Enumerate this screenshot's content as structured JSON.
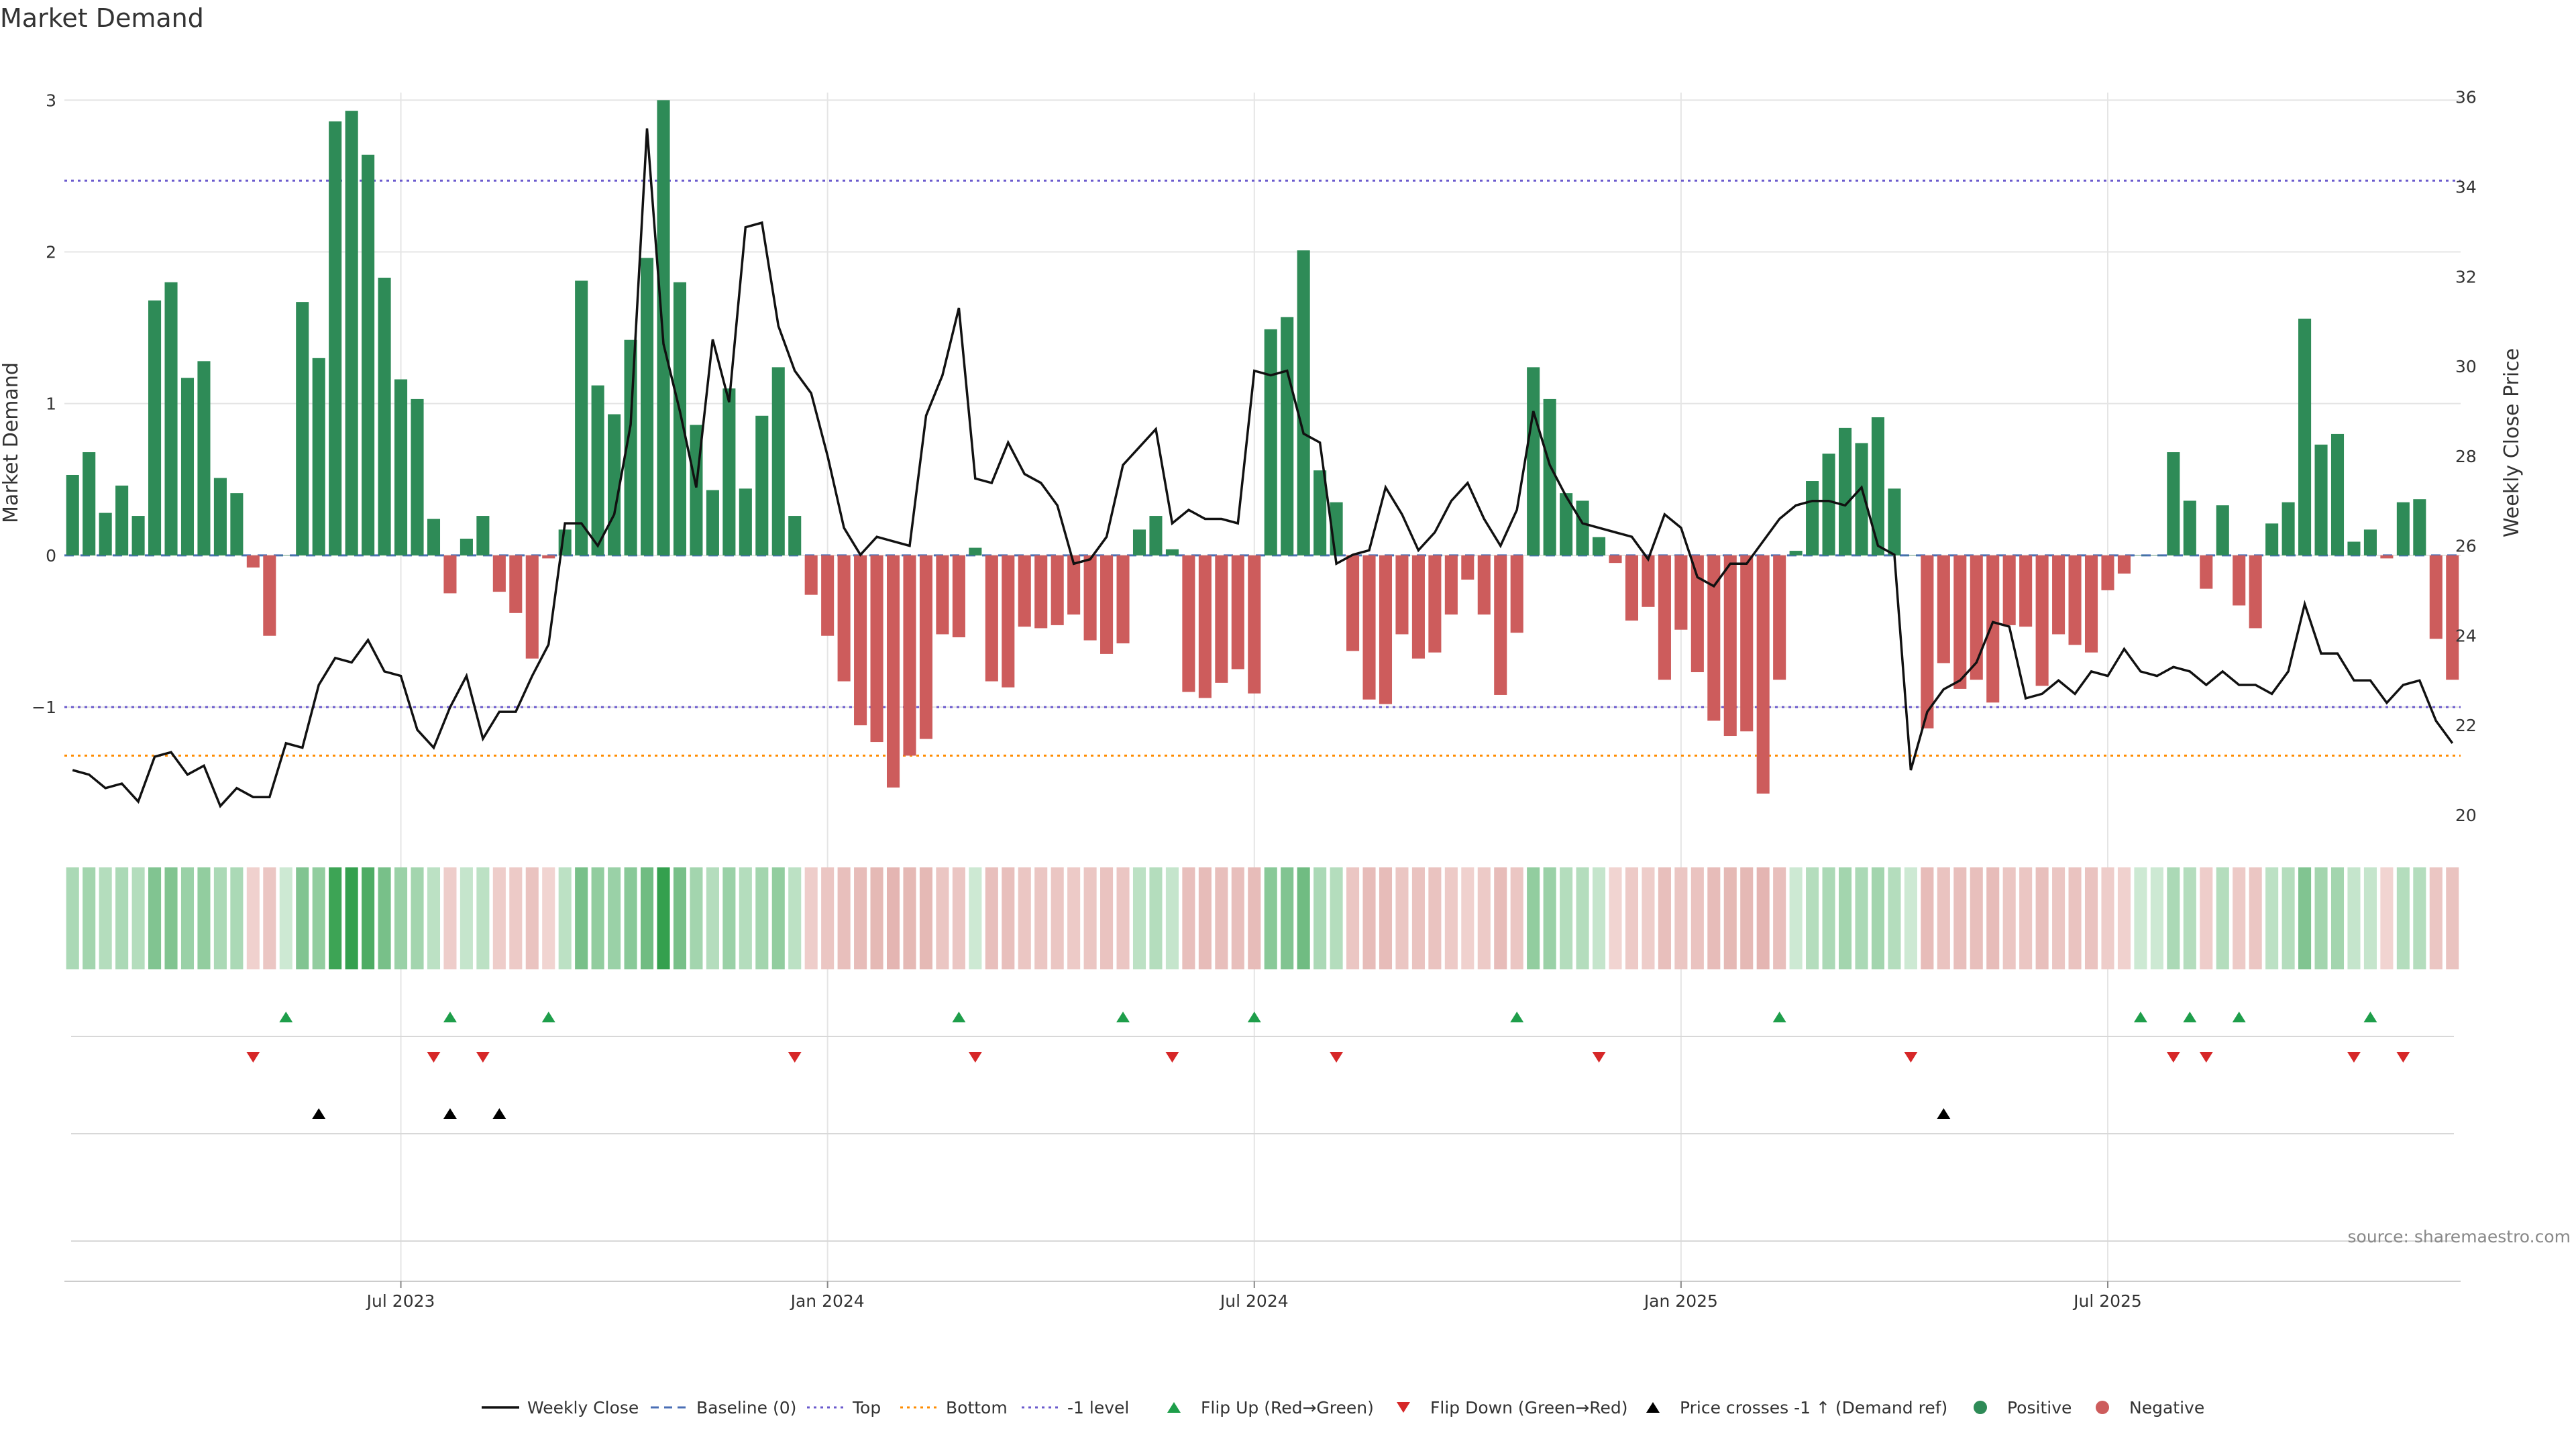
{
  "colors": {
    "positive": "#2e8b57",
    "negative": "#cd5c5c",
    "price": "#111111",
    "baseline": "#4a6fb5",
    "top": "#6a5acd",
    "bottom": "#ff8c00",
    "minus_one": "#6a5acd",
    "flip_up": "#1e9e4a",
    "flip_down": "#d62728",
    "cross": "#000000",
    "grid": "#e5e5e5"
  },
  "chart_data": {
    "type": "bar",
    "title": "Market Demand",
    "ylabel": "Market Demand",
    "y2label": "Weekly Close Price",
    "ylim": [
      -1.8,
      3.05
    ],
    "y2lim": [
      19.7,
      36.1
    ],
    "yticks": [
      -1,
      0,
      1,
      2,
      3
    ],
    "y2ticks": [
      20,
      22,
      24,
      26,
      28,
      30,
      32,
      34,
      36
    ],
    "xtick_labels": [
      "Jul 2023",
      "Jan 2024",
      "Jul 2024",
      "Jan 2025",
      "Jul 2025"
    ],
    "xtick_index": [
      20,
      46,
      72,
      98,
      124
    ],
    "reference_lines": {
      "baseline": 0,
      "top": 2.47,
      "bottom": -1.32,
      "minus_one": -1
    },
    "demand": [
      0.53,
      0.68,
      0.28,
      0.46,
      0.26,
      1.68,
      1.8,
      1.17,
      1.28,
      0.51,
      0.41,
      -0.08,
      -0.53,
      0.0,
      1.67,
      1.3,
      2.86,
      2.93,
      2.64,
      1.83,
      1.16,
      1.03,
      0.24,
      -0.25,
      0.11,
      0.26,
      -0.24,
      -0.38,
      -0.68,
      -0.02,
      0.17,
      1.81,
      1.12,
      0.93,
      1.42,
      1.96,
      3.0,
      1.8,
      0.86,
      0.43,
      1.1,
      0.44,
      0.92,
      1.24,
      0.26,
      -0.26,
      -0.53,
      -0.83,
      -1.12,
      -1.23,
      -1.53,
      -1.32,
      -1.21,
      -0.52,
      -0.54,
      0.05,
      -0.83,
      -0.87,
      -0.47,
      -0.48,
      -0.46,
      -0.39,
      -0.56,
      -0.65,
      -0.58,
      0.17,
      0.26,
      0.04,
      -0.9,
      -0.94,
      -0.84,
      -0.75,
      -0.91,
      1.49,
      1.57,
      2.01,
      0.56,
      0.35,
      -0.63,
      -0.95,
      -0.98,
      -0.52,
      -0.68,
      -0.64,
      -0.39,
      -0.16,
      -0.39,
      -0.92,
      -0.51,
      1.24,
      1.03,
      0.41,
      0.36,
      0.12,
      -0.05,
      -0.43,
      -0.34,
      -0.82,
      -0.49,
      -0.77,
      -1.09,
      -1.19,
      -1.16,
      -1.57,
      -0.82,
      0.03,
      0.49,
      0.67,
      0.84,
      0.74,
      0.91,
      0.44,
      0.0,
      -1.14,
      -0.71,
      -0.88,
      -0.82,
      -0.97,
      -0.46,
      -0.47,
      -0.86,
      -0.52,
      -0.59,
      -0.64,
      -0.23,
      -0.12,
      0.0,
      0.0,
      0.68,
      0.36,
      -0.22,
      0.33,
      -0.33,
      -0.48,
      0.21,
      0.35,
      1.56,
      0.73,
      0.8,
      0.09,
      0.17,
      -0.02,
      0.35,
      0.37,
      -0.55,
      -0.82
    ],
    "price": [
      21.0,
      20.9,
      20.6,
      20.7,
      20.3,
      21.3,
      21.4,
      20.9,
      21.1,
      20.2,
      20.6,
      20.4,
      20.4,
      21.6,
      21.5,
      22.9,
      23.5,
      23.4,
      23.9,
      23.2,
      23.1,
      21.9,
      21.5,
      22.4,
      23.1,
      21.7,
      22.3,
      22.3,
      23.1,
      23.8,
      26.5,
      26.5,
      26.0,
      26.7,
      28.7,
      35.3,
      30.5,
      29.0,
      27.3,
      30.6,
      29.2,
      33.1,
      33.2,
      30.9,
      29.9,
      29.4,
      28.0,
      26.4,
      25.8,
      26.2,
      26.1,
      26.0,
      28.9,
      29.8,
      31.3,
      27.5,
      27.4,
      28.3,
      27.6,
      27.4,
      26.9,
      25.6,
      25.7,
      26.2,
      27.8,
      28.2,
      28.6,
      26.5,
      26.8,
      26.6,
      26.6,
      26.5,
      29.9,
      29.8,
      29.9,
      28.5,
      28.3,
      25.6,
      25.8,
      25.9,
      27.3,
      26.7,
      25.9,
      26.3,
      27.0,
      27.4,
      26.6,
      26.0,
      26.8,
      29.0,
      27.8,
      27.1,
      26.5,
      26.4,
      26.3,
      26.2,
      25.7,
      26.7,
      26.4,
      25.3,
      25.1,
      25.6,
      25.6,
      26.1,
      26.6,
      26.9,
      27.0,
      27.0,
      26.9,
      27.3,
      26.0,
      25.8,
      21.0,
      22.3,
      22.8,
      23.0,
      23.4,
      24.3,
      24.2,
      22.6,
      22.7,
      23.0,
      22.7,
      23.2,
      23.1,
      23.7,
      23.2,
      23.1,
      23.3,
      23.2,
      22.9,
      23.2,
      22.9,
      22.9,
      22.7,
      23.2,
      24.7,
      23.6,
      23.6,
      23.0,
      23.0,
      22.5,
      22.9,
      23.0,
      22.1,
      21.6
    ],
    "heatmap": [
      0.3,
      0.35,
      0.25,
      0.3,
      0.25,
      0.55,
      0.55,
      0.4,
      0.45,
      0.3,
      0.3,
      -0.15,
      -0.3,
      0.1,
      0.55,
      0.45,
      0.95,
      1.0,
      0.85,
      0.6,
      0.4,
      0.35,
      0.2,
      -0.2,
      0.15,
      0.2,
      -0.2,
      -0.25,
      -0.35,
      -0.1,
      0.2,
      0.6,
      0.45,
      0.4,
      0.5,
      0.65,
      1.0,
      0.6,
      0.35,
      0.25,
      0.4,
      0.25,
      0.35,
      0.45,
      0.2,
      -0.2,
      -0.3,
      -0.4,
      -0.45,
      -0.5,
      -0.55,
      -0.5,
      -0.5,
      -0.3,
      -0.3,
      0.1,
      -0.4,
      -0.4,
      -0.3,
      -0.3,
      -0.3,
      -0.25,
      -0.3,
      -0.35,
      -0.3,
      0.2,
      0.25,
      0.15,
      -0.4,
      -0.45,
      -0.4,
      -0.4,
      -0.45,
      0.5,
      0.55,
      0.65,
      0.3,
      0.25,
      -0.3,
      -0.45,
      -0.45,
      -0.3,
      -0.35,
      -0.35,
      -0.25,
      -0.15,
      -0.25,
      -0.45,
      -0.3,
      0.45,
      0.4,
      0.25,
      0.25,
      0.15,
      -0.1,
      -0.25,
      -0.2,
      -0.4,
      -0.3,
      -0.35,
      -0.45,
      -0.5,
      -0.5,
      -0.55,
      -0.4,
      0.1,
      0.25,
      0.3,
      0.35,
      0.3,
      0.35,
      0.25,
      0.1,
      -0.45,
      -0.35,
      -0.4,
      -0.4,
      -0.45,
      -0.3,
      -0.3,
      -0.4,
      -0.3,
      -0.35,
      -0.35,
      -0.2,
      -0.15,
      0.1,
      0.1,
      0.3,
      0.25,
      -0.2,
      0.25,
      -0.25,
      -0.3,
      0.2,
      0.25,
      0.55,
      0.35,
      0.35,
      0.15,
      0.15,
      -0.1,
      0.25,
      0.25,
      -0.3,
      -0.35
    ],
    "flip_up_index": [
      13,
      23,
      29,
      54,
      64,
      72,
      88,
      104,
      126,
      129,
      132,
      140
    ],
    "flip_down_index": [
      11,
      22,
      25,
      44,
      55,
      67,
      77,
      93,
      112,
      128,
      130,
      139,
      142
    ],
    "cross_index": [
      15,
      23,
      26,
      114
    ],
    "source": "source: sharemaestro.com",
    "legend": [
      "Weekly Close",
      "Baseline (0)",
      "Top",
      "Bottom",
      "-1 level",
      "Flip Up (Red→Green)",
      "Flip Down (Green→Red)",
      "Price crosses -1 ↑ (Demand ref)",
      "Positive",
      "Negative"
    ]
  }
}
